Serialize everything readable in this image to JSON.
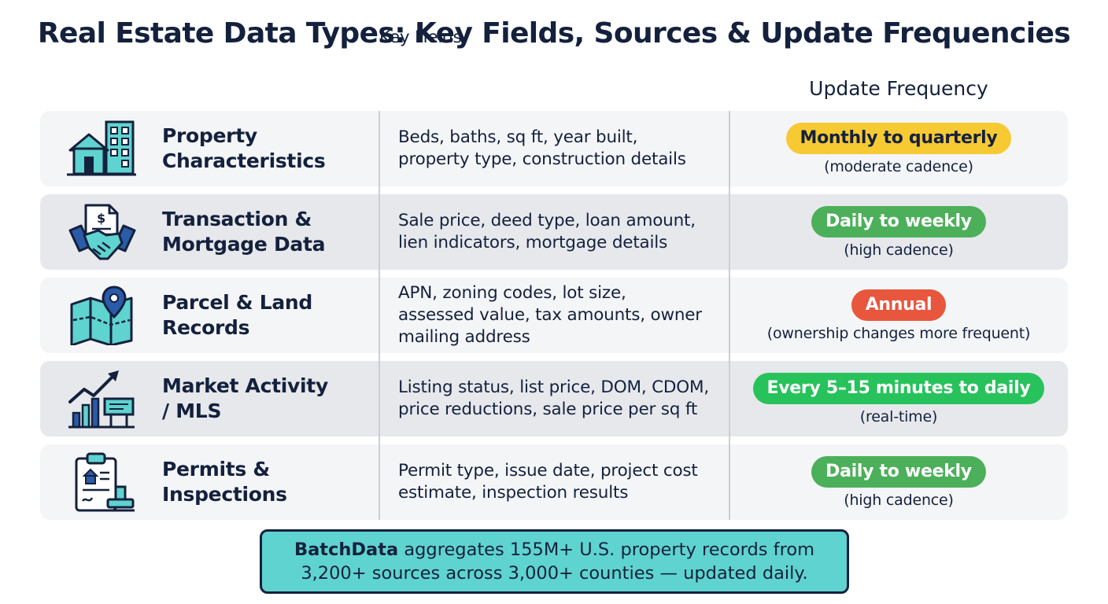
{
  "title": "Real Estate Data Types: Key Fields, Sources & Update Frequencies",
  "columns": {
    "fields": "Key Fields",
    "frequency": "Update Frequency"
  },
  "colors": {
    "navy": "#14213d",
    "teal": "#5fd3cf",
    "yellow": "#f7c933",
    "green": "#4caf5a",
    "red": "#e8563d",
    "bright_green": "#27c25b"
  },
  "rows": [
    {
      "icon": "house-building-icon",
      "category_line1": "Property",
      "category_line2": "Characteristics",
      "fields_line1": "Beds, baths, sq ft, year built,",
      "fields_line2": "property type, construction details",
      "fields_line3": "",
      "frequency": "Monthly to quarterly",
      "frequency_color": "#f7c933",
      "frequency_text_color": "#14213d",
      "note": "(moderate cadence)"
    },
    {
      "icon": "handshake-document-icon",
      "category_line1": "Transaction &",
      "category_line2": "Mortgage Data",
      "fields_line1": "Sale price, deed type, loan amount,",
      "fields_line2": "lien indicators, mortgage details",
      "fields_line3": "",
      "frequency": "Daily to weekly",
      "frequency_color": "#4caf5a",
      "frequency_text_color": "#ffffff",
      "note": "(high cadence)"
    },
    {
      "icon": "map-pin-icon",
      "category_line1": "Parcel & Land",
      "category_line2": "Records",
      "fields_line1": "APN, zoning codes, lot size,",
      "fields_line2": "assessed value, tax amounts, owner",
      "fields_line3": "mailing address",
      "frequency": "Annual",
      "frequency_color": "#e8563d",
      "frequency_text_color": "#ffffff",
      "note": "(ownership changes more frequent)"
    },
    {
      "icon": "trend-chart-sign-icon",
      "category_line1": "Market Activity",
      "category_line2": "/ MLS",
      "fields_line1": "Listing status, list price, DOM, CDOM,",
      "fields_line2": "price reductions, sale price per sq ft",
      "fields_line3": "",
      "frequency": "Every 5–15 minutes to daily",
      "frequency_color": "#27c25b",
      "frequency_text_color": "#ffffff",
      "note": "(real-time)"
    },
    {
      "icon": "clipboard-stamp-icon",
      "category_line1": "Permits &",
      "category_line2": "Inspections",
      "fields_line1": "Permit type, issue date, project cost",
      "fields_line2": "estimate, inspection results",
      "fields_line3": "",
      "frequency": "Daily to weekly",
      "frequency_color": "#4caf5a",
      "frequency_text_color": "#ffffff",
      "note": "(high cadence)"
    }
  ],
  "footer": {
    "brand": "BatchData",
    "line1_rest": " aggregates 155M+ U.S. property records from",
    "line2": "3,200+ sources across 3,000+ counties — updated daily."
  }
}
